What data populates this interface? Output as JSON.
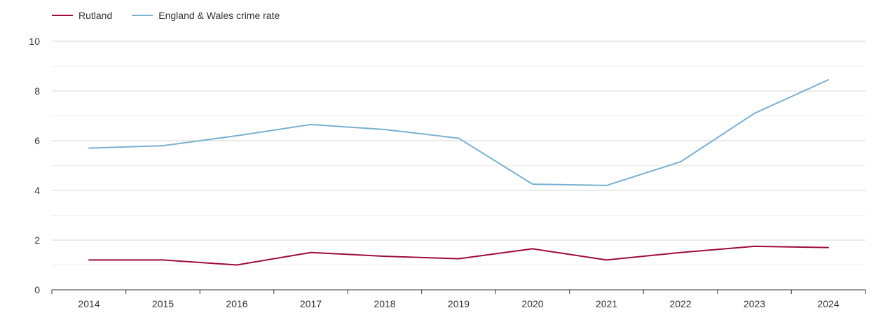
{
  "chart_data": {
    "type": "line",
    "title": "",
    "xlabel": "",
    "ylabel": "",
    "categories": [
      "2014",
      "2015",
      "2016",
      "2017",
      "2018",
      "2019",
      "2020",
      "2021",
      "2022",
      "2023",
      "2024"
    ],
    "ylim": [
      0,
      10
    ],
    "yticks": [
      0,
      2,
      4,
      6,
      8,
      10
    ],
    "grid": true,
    "legend_position": "top-left",
    "series": [
      {
        "name": "Rutland",
        "color": "#9e0b3a",
        "values": [
          1.2,
          1.2,
          1.0,
          1.5,
          1.35,
          1.25,
          1.65,
          1.2,
          1.5,
          1.75,
          1.7
        ]
      },
      {
        "name": "England & Wales crime rate",
        "color": "#7ab0d0",
        "values": [
          5.7,
          5.8,
          6.2,
          6.65,
          6.45,
          6.1,
          4.25,
          4.2,
          5.15,
          7.1,
          8.45
        ]
      }
    ]
  }
}
